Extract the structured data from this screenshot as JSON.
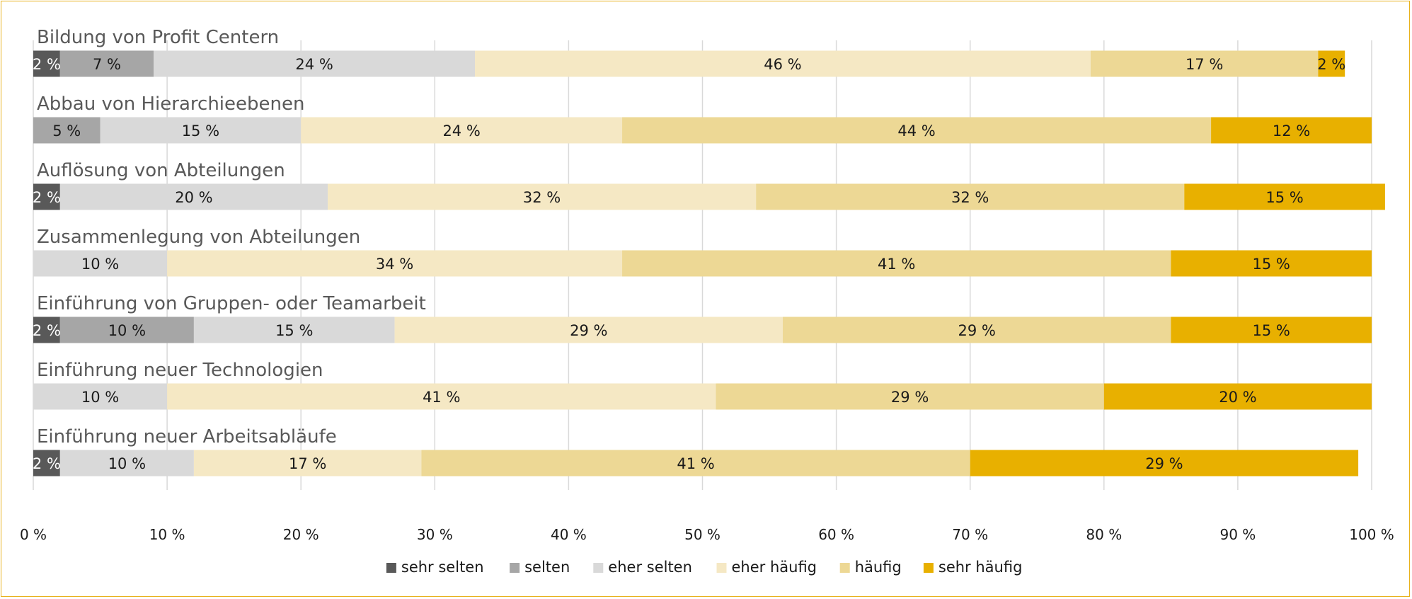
{
  "chart_data": {
    "type": "bar",
    "orientation": "horizontal-stacked",
    "categories": [
      "Bildung von Profit Centern",
      "Abbau von Hierarchieebenen",
      "Auflösung von Abteilungen",
      "Zusammenlegung von Abteilungen",
      "Einführung von Gruppen- oder Teamarbeit",
      "Einführung neuer Technologien",
      "Einführung neuer Arbeitsabläufe"
    ],
    "series": [
      {
        "name": "sehr selten",
        "color": "#595959",
        "label_color": "#ffffff",
        "values": [
          2,
          0,
          2,
          0,
          2,
          0,
          2
        ]
      },
      {
        "name": "selten",
        "color": "#A6A6A6",
        "label_color": "#1a1a1a",
        "values": [
          7,
          5,
          0,
          0,
          10,
          0,
          0
        ]
      },
      {
        "name": "eher selten",
        "color": "#D9D9D9",
        "label_color": "#1a1a1a",
        "values": [
          24,
          15,
          20,
          10,
          15,
          10,
          10
        ]
      },
      {
        "name": "eher häufig",
        "color": "#F5E8C4",
        "label_color": "#1a1a1a",
        "values": [
          46,
          24,
          32,
          34,
          29,
          41,
          17
        ]
      },
      {
        "name": "häufig",
        "color": "#EDD895",
        "label_color": "#1a1a1a",
        "values": [
          17,
          44,
          32,
          41,
          29,
          29,
          41
        ]
      },
      {
        "name": "sehr häufig",
        "color": "#E8B000",
        "label_color": "#1a1a1a",
        "values": [
          2,
          12,
          15,
          15,
          15,
          20,
          29
        ]
      }
    ],
    "xlim": [
      0,
      100
    ],
    "xticks": [
      "0 %",
      "10 %",
      "20 %",
      "30 %",
      "40 %",
      "50 %",
      "60 %",
      "70 %",
      "80 %",
      "90 %",
      "100 %"
    ],
    "value_suffix": " %",
    "grid": true,
    "legend_position": "bottom"
  }
}
